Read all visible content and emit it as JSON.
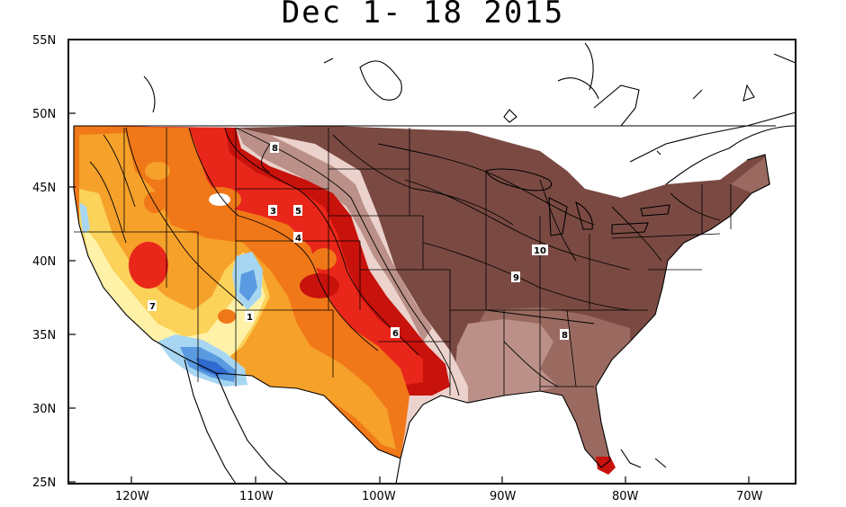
{
  "title": "Dec 1-  18 2015",
  "axes": {
    "lat_labels": [
      "55N",
      "50N",
      "45N",
      "40N",
      "35N",
      "30N",
      "25N"
    ],
    "lon_labels": [
      "120W",
      "110W",
      "100W",
      "90W",
      "80W",
      "70W"
    ]
  },
  "contour_labels": [
    "8",
    "3",
    "5",
    "4",
    "7",
    "1",
    "6",
    "10",
    "9",
    "8"
  ],
  "colors": {
    "darkest_brown": "#7a4a42",
    "brown": "#9a6a60",
    "mid_brown": "#bb9088",
    "light_pink": "#ecd2cc",
    "red": "#e8271a",
    "dark_red": "#c8120c",
    "orange": "#f07818",
    "light_orange": "#f6a12a",
    "yellow": "#fbd25a",
    "pale_yellow": "#fff2a8",
    "light_blue": "#a7d6f2",
    "blue": "#5a9ae0",
    "dark_blue": "#2f6bd0"
  }
}
